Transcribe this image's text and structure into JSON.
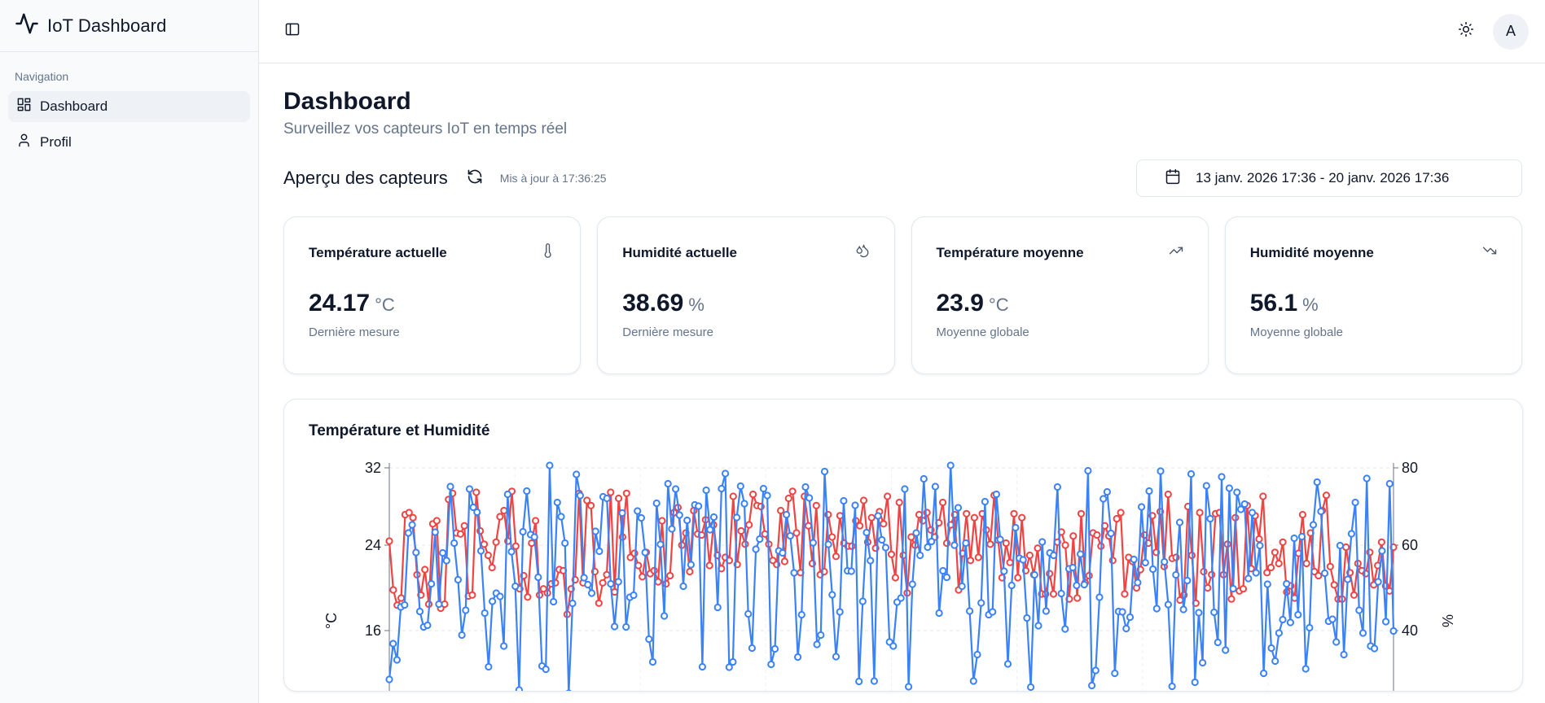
{
  "app": {
    "title": "IoT Dashboard"
  },
  "sidebar": {
    "group_label": "Navigation",
    "items": [
      {
        "label": "Dashboard",
        "icon": "layout-grid-icon",
        "active": true
      },
      {
        "label": "Profil",
        "icon": "user-icon",
        "active": false
      }
    ]
  },
  "topbar": {
    "avatar_initial": "A",
    "theme_icon": "sun-icon",
    "sidebar_toggle_icon": "panel-left-icon"
  },
  "page": {
    "title": "Dashboard",
    "subtitle": "Surveillez vos capteurs IoT en temps réel"
  },
  "overview": {
    "title": "Aperçu des capteurs",
    "updated": "Mis à jour à 17:36:25",
    "date_range": "13 janv. 2026 17:36 - 20 janv. 2026 17:36"
  },
  "cards": [
    {
      "title": "Température actuelle",
      "value": "24.17",
      "unit": "°C",
      "footer": "Dernière mesure",
      "icon": "thermometer-icon"
    },
    {
      "title": "Humidité actuelle",
      "value": "38.69",
      "unit": "%",
      "footer": "Dernière mesure",
      "icon": "droplets-icon"
    },
    {
      "title": "Température moyenne",
      "value": "23.9",
      "unit": "°C",
      "footer": "Moyenne globale",
      "icon": "trending-up-icon"
    },
    {
      "title": "Humidité moyenne",
      "value": "56.1",
      "unit": "%",
      "footer": "Moyenne globale",
      "icon": "trending-down-icon"
    }
  ],
  "chart": {
    "title": "Température et Humidité"
  },
  "chart_data": {
    "type": "line",
    "title": "Température et Humidité",
    "y_left_label": "°C",
    "y_right_label": "%",
    "y_left_ticks": [
      "32",
      "24",
      "16"
    ],
    "y_right_ticks": [
      "80",
      "60",
      "40"
    ],
    "y_left_range": [
      8,
      32
    ],
    "y_right_range": [
      20,
      80
    ],
    "grid": true,
    "colors": {
      "temperature": "#ef4444",
      "humidity": "#3b82f6"
    },
    "series": [
      {
        "axis": "left",
        "values": [
          24.8,
          20,
          18.5,
          19.2,
          27.4,
          27.6,
          27.1,
          21.5,
          19.5,
          22,
          18.6,
          26.5,
          26.8,
          18.2,
          18.6,
          28.9,
          29.5,
          25.6,
          25.5,
          26.3,
          19.4,
          19.5,
          29.6,
          25.8,
          24.5,
          23.4,
          22.2,
          24.7,
          27.2,
          27.8,
          24.8,
          29.7,
          24.3,
          20.1,
          21.4,
          19.3,
          24.6,
          26.8,
          19.5,
          20.1,
          19.7,
          20.6,
          20.7,
          22,
          21.9,
          17.6,
          20.1,
          21,
          29.5,
          20.7,
          28.8,
          28.3,
          21.8,
          18.7,
          20.7,
          21.5,
          29.6,
          19.8,
          29,
          25.2,
          29.5,
          23.2,
          23.6,
          22.4,
          21.3,
          23.7,
          21.6,
          21.9,
          20.8,
          26.8,
          20.6,
          21.4,
          27.6,
          28.1,
          24.4,
          25.6,
          21.8,
          27.8,
          25.5,
          25.4,
          26.9,
          22.4,
          26.4,
          23.4,
          22.1,
          23.2,
          22.9,
          29.2,
          22.5,
          25.8,
          24.5,
          26.4,
          29.4,
          28.3,
          28.2,
          25.5,
          24.5,
          22.9,
          22.5,
          27.8,
          22.8,
          29,
          29.7,
          25.6,
          21.7,
          29.2,
          26.3,
          22.6,
          28.3,
          21.5,
          21.8,
          27.4,
          25.2,
          23.3,
          27.3,
          24.6,
          24.3,
          24.3,
          26.8,
          26.3,
          28.8,
          24.7,
          27.1,
          24.1,
          27.7,
          26.5,
          29.2,
          23.5,
          21.2,
          28.6,
          23.4,
          19.7,
          25.2,
          24.4,
          27.4,
          26.8,
          27.6,
          25.9,
          25.2,
          26.6,
          28.6,
          24.6,
          26.4,
          27.4,
          20,
          23.6,
          27.5,
          22.9,
          27.1,
          23.2,
          27.5,
          25.9,
          24.5,
          29.3,
          24.9,
          21.2,
          24.6,
          22.7,
          27.5,
          21.2,
          27.1,
          21.9,
          23.4,
          21.5,
          24.1,
          19.6,
          19.6,
          21.6,
          19.6,
          24.7,
          25.7,
          24.4,
          19.1,
          25.3,
          19.2,
          27.5,
          20.7,
          21.4,
          25.6,
          25.4,
          24.3,
          26.3,
          25.3,
          22.9,
          27,
          27.6,
          19.6,
          23.2,
          22.8,
          20.2,
          22,
          25.4,
          24.6,
          27.3,
          23.7,
          27.7,
          22.3,
          29.4,
          23.1,
          23.2,
          19,
          19.5,
          28.2,
          23.4,
          18.7,
          27.6,
          21.8,
          20.2,
          21.5,
          27.5,
          27.6,
          21.5,
          24.5,
          19.1,
          27.1,
          19.9,
          20.1,
          28.3,
          22.1,
          27.3,
          25,
          29.2,
          21.7,
          22.2,
          23.7,
          22.6,
          24.7,
          19.8,
          20.4,
          19.2,
          23.6,
          27.4,
          22.6,
          25.6,
          21.8,
          21.4,
          27.8,
          29.3,
          22.3,
          20.5,
          19.1,
          19.1,
          24.2,
          21.7,
          19.5,
          22.6,
          21.9,
          21.6,
          23.7,
          20.5,
          22.4,
          24.7,
          20.4,
          19.9,
          24.2
        ]
      },
      {
        "axis": "right",
        "values": [
          28,
          36.8,
          32.8,
          45.8,
          46.3,
          64,
          66,
          59.2,
          44.7,
          40.9,
          41.3,
          51.5,
          64.2,
          46.5,
          59.1,
          57.2,
          75.4,
          61.5,
          52.5,
          38.9,
          45,
          74.8,
          70.3,
          69.1,
          59.6,
          44.3,
          31.1,
          47.2,
          49.2,
          48.4,
          36.2,
          73.5,
          59.4,
          50.9,
          25.4,
          64.3,
          74.3,
          63.6,
          63,
          53.1,
          31.3,
          30.5,
          80.6,
          47.1,
          71.5,
          68,
          61.5,
          24.6,
          46.7,
          78.4,
          73.2,
          53,
          51.3,
          49.2,
          64.4,
          59.5,
          72.9,
          72.5,
          51.5,
          41,
          52,
          68.9,
          40.9,
          48.2,
          48.7,
          69.4,
          67.7,
          59.2,
          37.9,
          32.3,
          71.3,
          61.2,
          43.6,
          76.1,
          65,
          74.8,
          68.4,
          50.9,
          67.1,
          56.2,
          70.9,
          70.6,
          31.1,
          74.5,
          64.8,
          67.9,
          45.7,
          74.9,
          78.6,
          31,
          32.3,
          67.8,
          75.5,
          71.2,
          44.1,
          35.7,
          60,
          62.5,
          74.9,
          73.2,
          31.7,
          35.5,
          59.6,
          59.1,
          68.5,
          63.3,
          54.2,
          33.5,
          43.9,
          75.3,
          72.6,
          61.6,
          36.6,
          38.9,
          79.1,
          61.2,
          48.8,
          33.6,
          44.6,
          71.9,
          54.7,
          54.6,
          70.8,
          27.5,
          47.2,
          64.1,
          57.2,
          27.6,
          68.2,
          62.3,
          60.4,
          37.2,
          36.2,
          47,
          48,
          74.8,
          26.2,
          51.4,
          64,
          58.5,
          77.3,
          60.5,
          61.9,
          75.4,
          44.3,
          54.7,
          53.1,
          80.6,
          61,
          70.2,
          50.9,
          61.5,
          44.8,
          27.6,
          34.1,
          46.8,
          71.7,
          43.9,
          44.6,
          73.5,
          62.4,
          54.6,
          31.8,
          51.1,
          65.3,
          57.8,
          57.4,
          43.1,
          26.1,
          53.7,
          41.2,
          61.8,
          44.8,
          59.1,
          58.5,
          75.3,
          49.1,
          40.4,
          55.2,
          55.5,
          51.1,
          58.8,
          51.3,
          79.3,
          26.5,
          30.2,
          48.2,
          72.4,
          74.1,
          63.9,
          29.5,
          44.7,
          44.6,
          40.5,
          43.3,
          57.5,
          51.8,
          70.4,
          56.7,
          74.3,
          55.1,
          45.4,
          79.2,
          56.9,
          46.4,
          26.3,
          53.7,
          66.6,
          45.2,
          52.3,
          78.5,
          27.3,
          44.4,
          32.1,
          75.6,
          67.5,
          44.5,
          37.1,
          77.8,
          35.2,
          75,
          50.3,
          74,
          69.8,
          71.1,
          52.8,
          69,
          54.2,
          60.9,
          29.5,
          51.4,
          35.7,
          32.5,
          39.4,
          42.7,
          51.5,
          42,
          62.7,
          43.9,
          63.1,
          30.6,
          40.7,
          66,
          76.5,
          69.3,
          54.1,
          42.3,
          42.8,
          37.2,
          60.9,
          34.1,
          52.6,
          63.8,
          71.5,
          45,
          39.4,
          77.4,
          36.2,
          35.6,
          52,
          59.6,
          42.2,
          76.1,
          39.9
        ]
      }
    ]
  }
}
